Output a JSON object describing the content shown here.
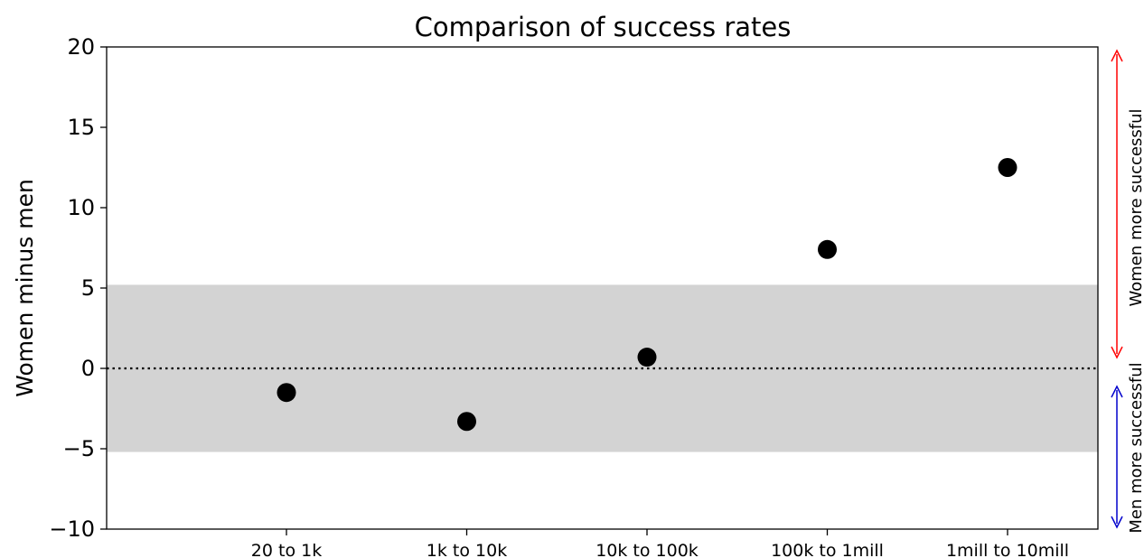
{
  "chart_data": {
    "type": "scatter",
    "title": "Comparison of success rates",
    "ylabel": "Women minus men",
    "xlabel": "",
    "ylim": [
      -10,
      20
    ],
    "yticks": [
      -10,
      -5,
      0,
      5,
      10,
      15,
      20
    ],
    "ytick_labels": [
      "−10",
      "−5",
      "0",
      "5",
      "10",
      "15",
      "20"
    ],
    "categories": [
      "20 to 1k",
      "1k to 10k",
      "10k to 100k",
      "100k to 1mill",
      "1mill to 10mill"
    ],
    "values": [
      -1.5,
      -3.3,
      0.7,
      7.4,
      12.5
    ],
    "band": [
      -5.2,
      5.2
    ],
    "reference_line": 0,
    "annotations": {
      "women": "Women more successful",
      "men": "Men more successful"
    },
    "grid": false,
    "colors": {
      "points": "#000000",
      "band": "#d3d3d3",
      "women_arrow": "#ff0000",
      "men_arrow": "#0000cc"
    }
  }
}
